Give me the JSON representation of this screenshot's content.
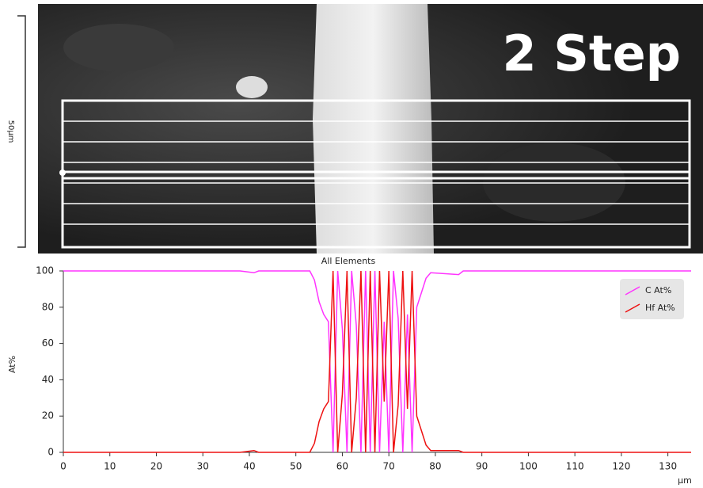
{
  "image": {
    "label": "2 Step",
    "scale_bar": "50µm"
  },
  "chart_data": {
    "type": "line",
    "title": "All Elements",
    "y_label": "At%",
    "x_label": "µm",
    "x": [
      0,
      38,
      41,
      42,
      53,
      54,
      55,
      56,
      57,
      58,
      59,
      60,
      61,
      62,
      63,
      64,
      65,
      66,
      67,
      68,
      69,
      70,
      71,
      72,
      73,
      74,
      75,
      76,
      77,
      78,
      79,
      85,
      86,
      135
    ],
    "series": [
      {
        "name": "C At%",
        "color": "#ff33ff",
        "values": [
          100,
          100,
          99,
          100,
          100,
          95,
          83,
          76,
          72,
          0,
          100,
          68,
          0,
          100,
          70,
          0,
          100,
          0,
          100,
          0,
          72,
          0,
          100,
          74,
          0,
          76,
          0,
          80,
          88,
          96,
          99,
          98,
          100,
          100
        ]
      },
      {
        "name": "Hf At%",
        "color": "#ee1111",
        "values": [
          0,
          0,
          1,
          0,
          0,
          5,
          17,
          24,
          28,
          100,
          0,
          32,
          100,
          0,
          30,
          100,
          0,
          100,
          0,
          100,
          28,
          100,
          0,
          26,
          100,
          24,
          100,
          20,
          12,
          4,
          1,
          1,
          0,
          0
        ]
      }
    ],
    "xlim": [
      0,
      135
    ],
    "xticks": [
      0,
      10,
      20,
      30,
      40,
      50,
      60,
      70,
      80,
      90,
      100,
      110,
      120,
      130
    ],
    "ylim": [
      0,
      100
    ],
    "yticks": [
      0,
      20,
      40,
      60,
      80,
      100
    ],
    "grid": false,
    "legend": "upper right"
  }
}
